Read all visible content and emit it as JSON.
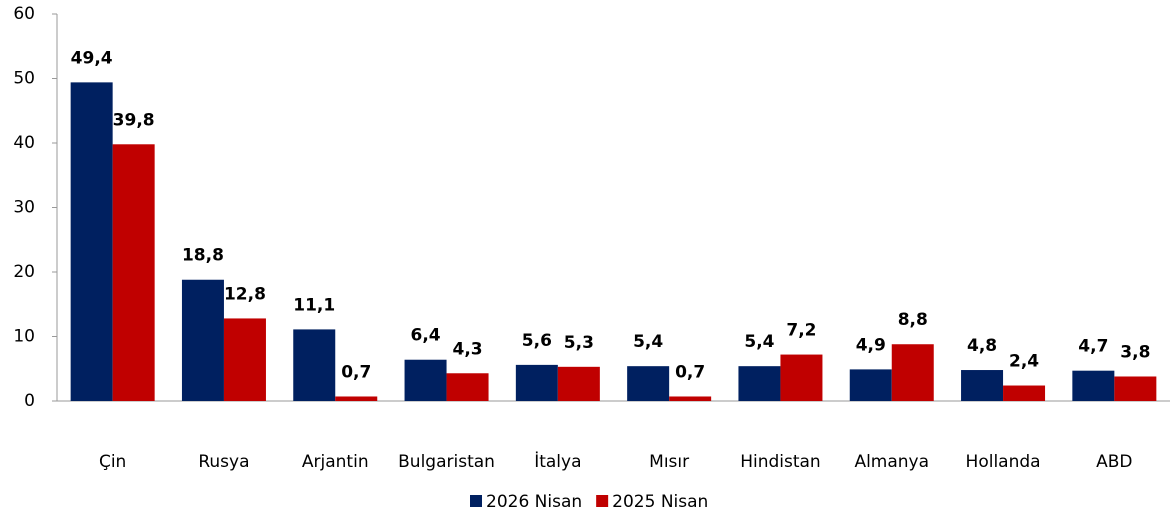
{
  "chart_data": {
    "type": "bar",
    "categories": [
      "Çin",
      "Rusya",
      "Arjantin",
      "Bulgaristan",
      "İtalya",
      "Mısır",
      "Hindistan",
      "Almanya",
      "Hollanda",
      "ABD"
    ],
    "series": [
      {
        "name": "2026 Nisan",
        "color": "#002060",
        "values": [
          49.4,
          18.8,
          11.1,
          6.4,
          5.6,
          5.4,
          5.4,
          4.9,
          4.8,
          4.7
        ],
        "value_labels": [
          "49,4",
          "18,8",
          "11,1",
          "6,4",
          "5,6",
          "5,4",
          "5,4",
          "4,9",
          "4,8",
          "4,7"
        ]
      },
      {
        "name": "2025 Nisan",
        "color": "#c00000",
        "values": [
          39.8,
          12.8,
          0.7,
          4.3,
          5.3,
          0.7,
          7.2,
          8.8,
          2.4,
          3.8
        ],
        "value_labels": [
          "39,8",
          "12,8",
          "0,7",
          "4,3",
          "5,3",
          "0,7",
          "7,2",
          "8,8",
          "2,4",
          "3,8"
        ]
      }
    ],
    "ylim": [
      0,
      60
    ],
    "yticks": [
      0,
      10,
      20,
      30,
      40,
      50,
      60
    ],
    "grid": false,
    "legend": "bottom"
  }
}
